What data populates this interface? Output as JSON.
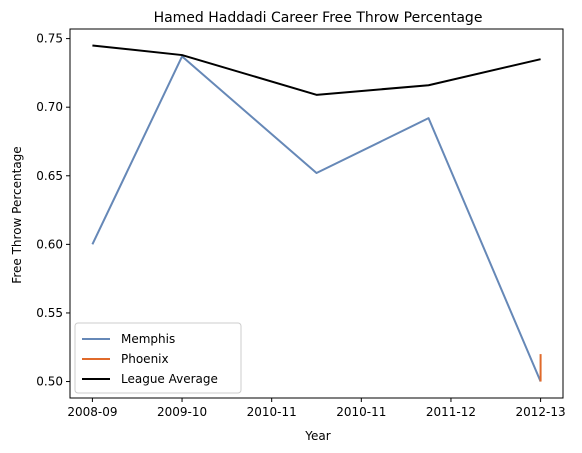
{
  "chart_data": {
    "type": "line",
    "title": "Hamed Haddadi Career Free Throw Percentage",
    "xlabel": "Year",
    "ylabel": "Free Throw Percentage",
    "categories": [
      "2008-09",
      "2009-10",
      "2010-11",
      "2010-11",
      "2011-12",
      "2012-13"
    ],
    "ylim": [
      0.488,
      0.757
    ],
    "yticks": [
      "0.50",
      "0.55",
      "0.60",
      "0.65",
      "0.70",
      "0.75"
    ],
    "ytick_values": [
      0.5,
      0.55,
      0.6,
      0.65,
      0.7,
      0.75
    ],
    "legend_position": "lower-left",
    "series": [
      {
        "name": "Memphis",
        "color": "#6688b7",
        "x": [
          0,
          1,
          2.5,
          3.75,
          5
        ],
        "values": [
          0.6,
          0.737,
          0.652,
          0.692,
          0.5
        ]
      },
      {
        "name": "Phoenix",
        "color": "#e06a2b",
        "x": [
          5,
          5
        ],
        "values": [
          0.5,
          0.52
        ]
      },
      {
        "name": "League Average",
        "color": "#000000",
        "x": [
          0,
          1,
          2.5,
          3.75,
          5
        ],
        "values": [
          0.745,
          0.738,
          0.709,
          0.716,
          0.735
        ]
      }
    ]
  }
}
